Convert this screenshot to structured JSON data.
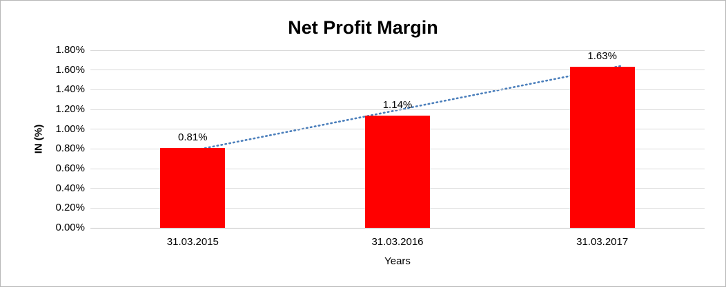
{
  "chart_data": {
    "type": "bar",
    "title": "Net Profit Margin",
    "xlabel": "Years",
    "ylabel": "IN (%)",
    "categories": [
      "31.03.2015",
      "31.03.2016",
      "31.03.2017"
    ],
    "values": [
      0.81,
      1.14,
      1.63
    ],
    "data_labels": [
      "0.81%",
      "1.14%",
      "1.63%"
    ],
    "y_ticks": [
      "0.00%",
      "0.20%",
      "0.40%",
      "0.60%",
      "0.80%",
      "1.00%",
      "1.20%",
      "1.40%",
      "1.60%",
      "1.80%"
    ],
    "ylim": [
      0,
      1.8
    ],
    "grid": true,
    "legend": "none",
    "trendline": {
      "type": "linear",
      "style": "dotted",
      "color": "#4A7EBB"
    },
    "colors": {
      "bar": "#FF0000",
      "gridline": "#D9D9D9",
      "axis_line": "#BFBFBF",
      "text": "#000000"
    }
  }
}
